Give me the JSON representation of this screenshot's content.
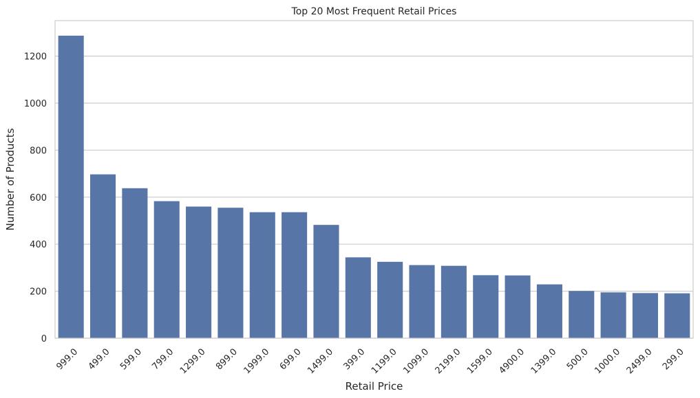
{
  "chart_data": {
    "type": "bar",
    "title": "Top 20 Most Frequent Retail Prices",
    "xlabel": "Retail Price",
    "ylabel": "Number of Products",
    "categories": [
      "999.0",
      "499.0",
      "599.0",
      "799.0",
      "1299.0",
      "899.0",
      "1999.0",
      "699.0",
      "1499.0",
      "399.0",
      "1199.0",
      "1099.0",
      "2199.0",
      "1599.0",
      "4900.0",
      "1399.0",
      "500.0",
      "1000.0",
      "2499.0",
      "299.0"
    ],
    "values": [
      1287,
      697,
      638,
      583,
      560,
      555,
      536,
      536,
      482,
      344,
      325,
      311,
      308,
      268,
      267,
      229,
      201,
      195,
      192,
      191
    ],
    "ylim": [
      0,
      1351
    ],
    "yticks": [
      0,
      200,
      400,
      600,
      800,
      1000,
      1200
    ],
    "grid": true,
    "bar_color": "#5875a8",
    "grid_color": "#cccccc"
  }
}
